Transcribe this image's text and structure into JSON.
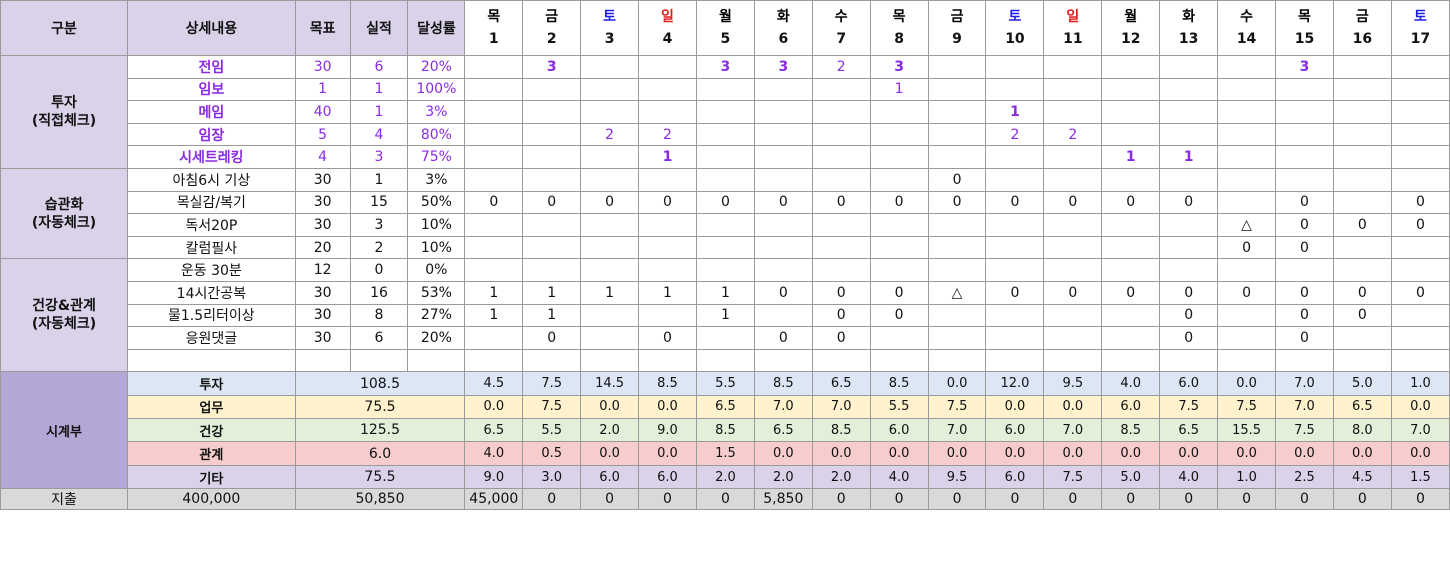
{
  "header": {
    "category": "구분",
    "detail": "상세내용",
    "target": "목표",
    "actual": "실적",
    "rate": "달성률",
    "days": [
      {
        "dow": "목",
        "num": "1",
        "type": "norm"
      },
      {
        "dow": "금",
        "num": "2",
        "type": "norm"
      },
      {
        "dow": "토",
        "num": "3",
        "type": "sat"
      },
      {
        "dow": "일",
        "num": "4",
        "type": "sun"
      },
      {
        "dow": "월",
        "num": "5",
        "type": "norm"
      },
      {
        "dow": "화",
        "num": "6",
        "type": "norm"
      },
      {
        "dow": "수",
        "num": "7",
        "type": "norm"
      },
      {
        "dow": "목",
        "num": "8",
        "type": "norm"
      },
      {
        "dow": "금",
        "num": "9",
        "type": "norm"
      },
      {
        "dow": "토",
        "num": "10",
        "type": "sat"
      },
      {
        "dow": "일",
        "num": "11",
        "type": "sun"
      },
      {
        "dow": "월",
        "num": "12",
        "type": "norm"
      },
      {
        "dow": "화",
        "num": "13",
        "type": "norm"
      },
      {
        "dow": "수",
        "num": "14",
        "type": "norm"
      },
      {
        "dow": "목",
        "num": "15",
        "type": "norm"
      },
      {
        "dow": "금",
        "num": "16",
        "type": "norm"
      },
      {
        "dow": "토",
        "num": "17",
        "type": "sat"
      }
    ]
  },
  "groups": [
    {
      "label": "투자\n(직접체크)",
      "rows": [
        {
          "name": "전임",
          "target": "30",
          "actual": "6",
          "rate": "20%",
          "style": "inv",
          "cells": [
            "",
            "3",
            "",
            "",
            "3",
            "3",
            "2",
            "3",
            "",
            "",
            "",
            "",
            "",
            "",
            "3",
            "",
            ""
          ]
        },
        {
          "name": "임보",
          "target": "1",
          "actual": "1",
          "rate": "100%",
          "style": "inv",
          "cells": [
            "",
            "",
            "",
            "",
            "",
            "",
            "",
            "1",
            "",
            "",
            "",
            "",
            "",
            "",
            "",
            "",
            ""
          ]
        },
        {
          "name": "메임",
          "target": "40",
          "actual": "1",
          "rate": "3%",
          "style": "inv",
          "cells": [
            "",
            "",
            "",
            "",
            "",
            "",
            "",
            "",
            "",
            "1",
            "",
            "",
            "",
            "",
            "",
            "",
            ""
          ]
        },
        {
          "name": "임장",
          "target": "5",
          "actual": "4",
          "rate": "80%",
          "style": "inv",
          "cells": [
            "",
            "",
            "2",
            "2",
            "",
            "",
            "",
            "",
            "",
            "2",
            "2",
            "",
            "",
            "",
            "",
            "",
            ""
          ]
        },
        {
          "name": "시세트레킹",
          "target": "4",
          "actual": "3",
          "rate": "75%",
          "style": "inv",
          "cells": [
            "",
            "",
            "",
            "1",
            "",
            "",
            "",
            "",
            "",
            "",
            "",
            "1",
            "1",
            "",
            "",
            "",
            ""
          ]
        }
      ]
    },
    {
      "label": "습관화\n(자동체크)",
      "rows": [
        {
          "name": "아침6시 기상",
          "target": "30",
          "actual": "1",
          "rate": "3%",
          "style": "plain",
          "cells": [
            "",
            "",
            "",
            "",
            "",
            "",
            "",
            "",
            "0",
            "",
            "",
            "",
            "",
            "",
            "",
            "",
            ""
          ]
        },
        {
          "name": "목실감/복기",
          "target": "30",
          "actual": "15",
          "rate": "50%",
          "style": "plain",
          "cells": [
            "0",
            "0",
            "0",
            "0",
            "0",
            "0",
            "0",
            "0",
            "0",
            "0",
            "0",
            "0",
            "0",
            "",
            "0",
            "",
            "0"
          ]
        },
        {
          "name": "독서20P",
          "target": "30",
          "actual": "3",
          "rate": "10%",
          "style": "plain",
          "cells": [
            "",
            "",
            "",
            "",
            "",
            "",
            "",
            "",
            "",
            "",
            "",
            "",
            "",
            "△",
            "0",
            "0",
            "0"
          ]
        },
        {
          "name": "칼럼필사",
          "target": "20",
          "actual": "2",
          "rate": "10%",
          "style": "plain",
          "cells": [
            "",
            "",
            "",
            "",
            "",
            "",
            "",
            "",
            "",
            "",
            "",
            "",
            "",
            "0",
            "0",
            "",
            ""
          ]
        }
      ]
    },
    {
      "label": "건강&관계\n(자동체크)",
      "rows": [
        {
          "name": "운동 30분",
          "target": "12",
          "actual": "0",
          "rate": "0%",
          "style": "plain",
          "cells": [
            "",
            "",
            "",
            "",
            "",
            "",
            "",
            "",
            "",
            "",
            "",
            "",
            "",
            "",
            "",
            "",
            ""
          ]
        },
        {
          "name": "14시간공복",
          "target": "30",
          "actual": "16",
          "rate": "53%",
          "style": "plain",
          "cells": [
            "1",
            "1",
            "1",
            "1",
            "1",
            "0",
            "0",
            "0",
            "△",
            "0",
            "0",
            "0",
            "0",
            "0",
            "0",
            "0",
            "0"
          ]
        },
        {
          "name": "물1.5리터이상",
          "target": "30",
          "actual": "8",
          "rate": "27%",
          "style": "plain",
          "cells": [
            "1",
            "1",
            "",
            "",
            "1",
            "",
            "0",
            "0",
            "",
            "",
            "",
            "",
            "0",
            "",
            "0",
            "0",
            ""
          ]
        },
        {
          "name": "응원댓글",
          "target": "30",
          "actual": "6",
          "rate": "20%",
          "style": "plain",
          "cells": [
            "",
            "0",
            "",
            "0",
            "",
            "0",
            "0",
            "",
            "",
            "",
            "",
            "",
            "0",
            "",
            "0",
            "",
            ""
          ]
        },
        {
          "name": "",
          "target": "",
          "actual": "",
          "rate": "",
          "style": "plain",
          "cells": [
            "",
            "",
            "",
            "",
            "",
            "",
            "",
            "",
            "",
            "",
            "",
            "",
            "",
            "",
            "",
            "",
            ""
          ]
        }
      ]
    }
  ],
  "timebook": {
    "label": "시계부",
    "rows": [
      {
        "name": "투자",
        "total": "108.5",
        "cls": "inv",
        "values": [
          "4.5",
          "7.5",
          "14.5",
          "8.5",
          "5.5",
          "8.5",
          "6.5",
          "8.5",
          "0.0",
          "12.0",
          "9.5",
          "4.0",
          "6.0",
          "0.0",
          "7.0",
          "5.0",
          "1.0"
        ]
      },
      {
        "name": "업무",
        "total": "75.5",
        "cls": "work",
        "values": [
          "0.0",
          "7.5",
          "0.0",
          "0.0",
          "6.5",
          "7.0",
          "7.0",
          "5.5",
          "7.5",
          "0.0",
          "0.0",
          "6.0",
          "7.5",
          "7.5",
          "7.0",
          "6.5",
          "0.0"
        ]
      },
      {
        "name": "건강",
        "total": "125.5",
        "cls": "health",
        "values": [
          "6.5",
          "5.5",
          "2.0",
          "9.0",
          "8.5",
          "6.5",
          "8.5",
          "6.0",
          "7.0",
          "6.0",
          "7.0",
          "8.5",
          "6.5",
          "15.5",
          "7.5",
          "8.0",
          "7.0"
        ]
      },
      {
        "name": "관계",
        "total": "6.0",
        "cls": "rel",
        "values": [
          "4.0",
          "0.5",
          "0.0",
          "0.0",
          "1.5",
          "0.0",
          "0.0",
          "0.0",
          "0.0",
          "0.0",
          "0.0",
          "0.0",
          "0.0",
          "0.0",
          "0.0",
          "0.0",
          "0.0"
        ]
      },
      {
        "name": "기타",
        "total": "75.5",
        "cls": "etc",
        "values": [
          "9.0",
          "3.0",
          "6.0",
          "6.0",
          "2.0",
          "2.0",
          "2.0",
          "4.0",
          "9.5",
          "6.0",
          "7.5",
          "5.0",
          "4.0",
          "1.0",
          "2.5",
          "4.5",
          "1.5"
        ]
      }
    ]
  },
  "expense": {
    "label": "지출",
    "budget": "400,000",
    "spent": "50,850",
    "values": [
      "45,000",
      "0",
      "0",
      "0",
      "0",
      "5,850",
      "0",
      "0",
      "0",
      "0",
      "0",
      "0",
      "0",
      "0",
      "0",
      "0",
      "0"
    ]
  }
}
